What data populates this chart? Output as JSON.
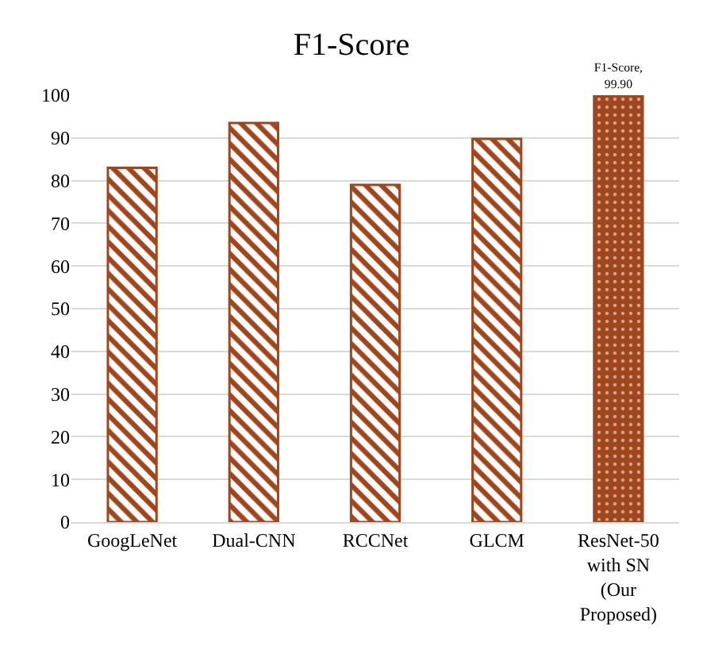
{
  "chart_data": {
    "type": "bar",
    "title": "F1-Score",
    "categories": [
      "GoogLeNet",
      "Dual-CNN",
      "RCCNet",
      "GLCM",
      "ResNet-50 with SN (Our Proposed)"
    ],
    "values": [
      83,
      93.5,
      79,
      89.8,
      99.9
    ],
    "value_labels": [
      null,
      null,
      null,
      null,
      "F1-Score, 99.90"
    ],
    "colors": [
      "#a0461c",
      "#a0461c",
      "#a0461c",
      "#a0461c",
      "#a0461c"
    ],
    "ylim": [
      0,
      100
    ],
    "yticks": [
      0,
      10,
      20,
      30,
      40,
      50,
      60,
      70,
      80,
      90,
      100
    ],
    "grid": "y",
    "legend": false
  }
}
